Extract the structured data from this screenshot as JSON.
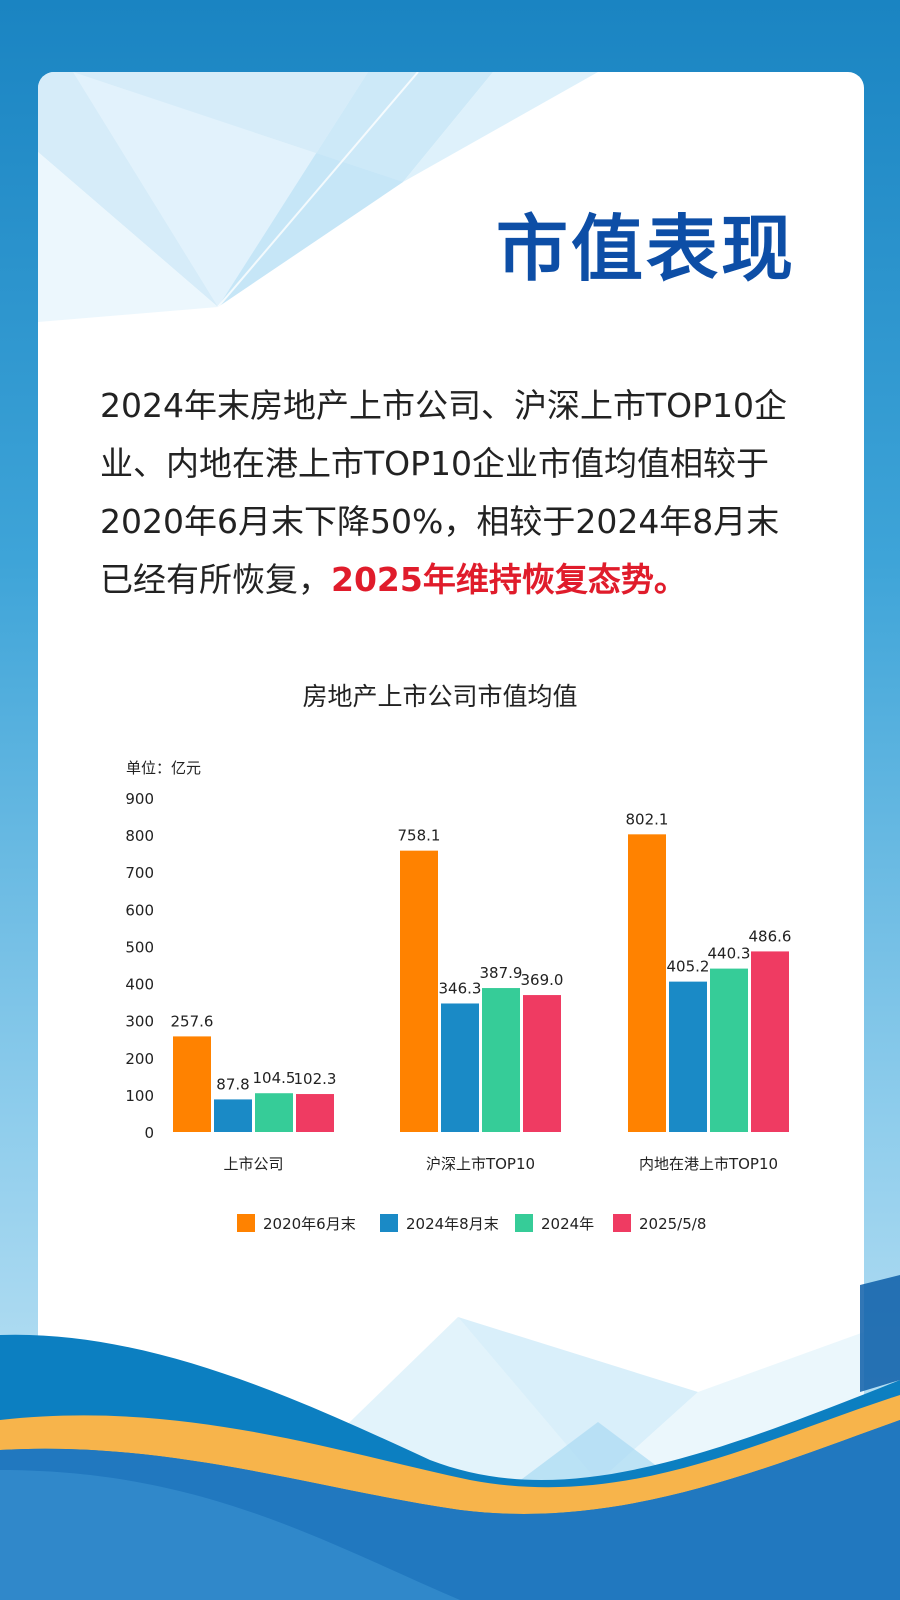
{
  "page": {
    "title": "市值表现",
    "paragraph": "2024年末房地产上市公司、沪深上市TOP10企业、内地在港上市TOP10企业市值均值相较于2020年6月末下降50%，相较于2024年8月末已经有所恢复，",
    "highlight": "2025年维持恢复态势。"
  },
  "colors": {
    "title": "#0d4ea6",
    "highlight": "#e01c2b"
  },
  "chart_data": {
    "type": "bar",
    "title": "房地产上市公司市值均值",
    "unit_label": "单位：亿元",
    "categories": [
      "上市公司",
      "沪深上市TOP10",
      "内地在港上市TOP10"
    ],
    "series": [
      {
        "name": "2020年6月末",
        "color": "#ff8200",
        "values": [
          257.6,
          758.1,
          802.1
        ],
        "labels": [
          "257.6",
          "758.1",
          "802.1"
        ]
      },
      {
        "name": "2024年8月末",
        "color": "#1a8ac6",
        "values": [
          87.8,
          346.3,
          405.2
        ],
        "labels": [
          "87.8",
          "346.3",
          "405.2"
        ]
      },
      {
        "name": "2024年",
        "color": "#36cc98",
        "values": [
          104.5,
          387.9,
          440.3
        ],
        "labels": [
          "104.5",
          "387.9",
          "440.3"
        ]
      },
      {
        "name": "2025/5/8",
        "color": "#ef3b62",
        "values": [
          102.3,
          369.0,
          486.6
        ],
        "labels": [
          "102.3",
          "369.0",
          "486.6"
        ]
      }
    ],
    "y_ticks": [
      "0",
      "100",
      "200",
      "300",
      "400",
      "500",
      "600",
      "700",
      "800",
      "900"
    ],
    "ylim": [
      0,
      900
    ],
    "grid": false,
    "legend_position": "bottom"
  }
}
